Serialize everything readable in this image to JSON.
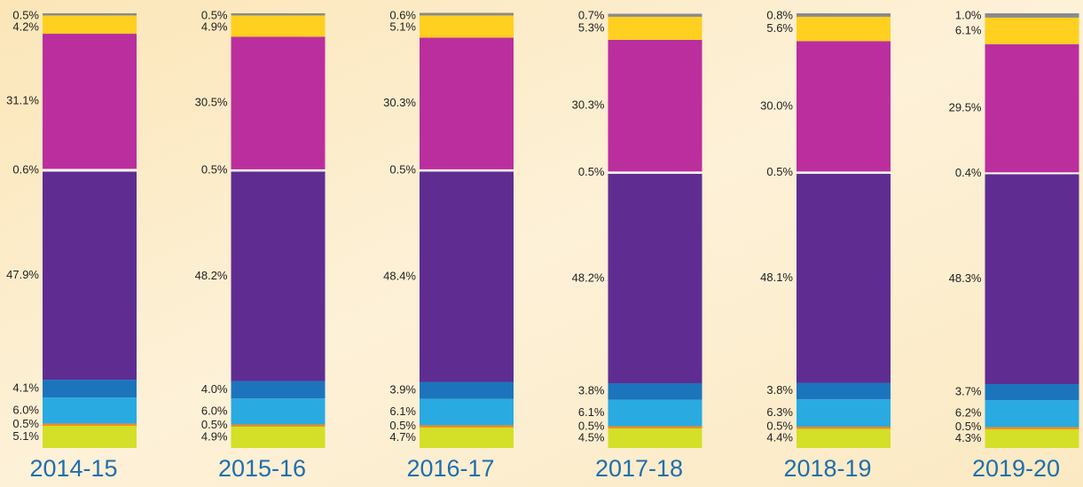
{
  "chart_data": {
    "type": "stacked-bar",
    "categories": [
      "2014-15",
      "2015-16",
      "2016-17",
      "2017-18",
      "2018-19",
      "2019-20"
    ],
    "ylim": [
      0,
      100
    ],
    "series": [
      {
        "color": "#d4df27",
        "values": [
          5.1,
          4.9,
          4.7,
          4.5,
          4.4,
          4.3
        ],
        "value_labels": [
          "5.1%",
          "4.9%",
          "4.7%",
          "4.5%",
          "4.4%",
          "4.3%"
        ]
      },
      {
        "color": "#f58a1f",
        "values": [
          0.5,
          0.5,
          0.5,
          0.5,
          0.5,
          0.5
        ],
        "value_labels": [
          "0.5%",
          "0.5%",
          "0.5%",
          "0.5%",
          "0.5%",
          "0.5%"
        ]
      },
      {
        "color": "#29aae1",
        "values": [
          6.0,
          6.0,
          6.1,
          6.1,
          6.3,
          6.2
        ],
        "value_labels": [
          "6.0%",
          "6.0%",
          "6.1%",
          "6.1%",
          "6.3%",
          "6.2%"
        ]
      },
      {
        "color": "#1c75bc",
        "values": [
          4.1,
          4.0,
          3.9,
          3.8,
          3.8,
          3.7
        ],
        "value_labels": [
          "4.1%",
          "4.0%",
          "3.9%",
          "3.8%",
          "3.8%",
          "3.7%"
        ]
      },
      {
        "color": "#5f2d91",
        "values": [
          47.9,
          48.2,
          48.4,
          48.2,
          48.1,
          48.3
        ],
        "value_labels": [
          "47.9%",
          "48.2%",
          "48.4%",
          "48.2%",
          "48.1%",
          "48.3%"
        ]
      },
      {
        "color": "#ffffff",
        "values": [
          0.6,
          0.5,
          0.5,
          0.5,
          0.5,
          0.4
        ],
        "value_labels": [
          "0.6%",
          "0.5%",
          "0.5%",
          "0.5%",
          "0.5%",
          "0.4%"
        ]
      },
      {
        "color": "#bb2e9e",
        "values": [
          31.1,
          30.5,
          30.3,
          30.3,
          30.0,
          29.5
        ],
        "value_labels": [
          "31.1%",
          "30.5%",
          "30.3%",
          "30.3%",
          "30.0%",
          "29.5%"
        ]
      },
      {
        "color": "#ffd020",
        "values": [
          4.2,
          4.9,
          5.1,
          5.3,
          5.6,
          6.1
        ],
        "value_labels": [
          "4.2%",
          "4.9%",
          "5.1%",
          "5.3%",
          "5.6%",
          "6.1%"
        ]
      },
      {
        "color": "#8a8a8a",
        "values": [
          0.5,
          0.5,
          0.6,
          0.7,
          0.8,
          1.0
        ],
        "value_labels": [
          "0.5%",
          "0.5%",
          "0.6%",
          "0.7%",
          "0.8%",
          "1.0%"
        ]
      }
    ]
  }
}
